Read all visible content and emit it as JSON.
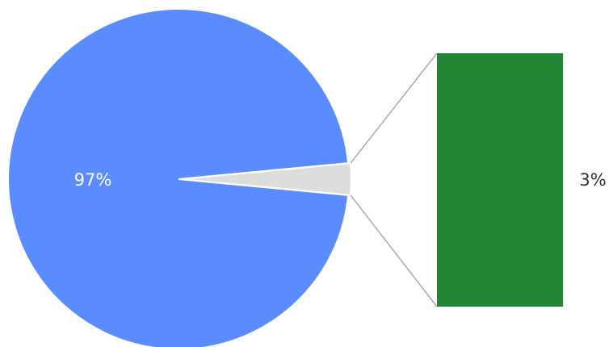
{
  "chart_data": {
    "type": "pie",
    "subtype": "pie-of-bar",
    "slices": [
      {
        "label": "97%",
        "value": 97,
        "color": "#5b8cff"
      },
      {
        "label": "3%",
        "value": 3,
        "color": "#dddddd",
        "exploded": true
      }
    ],
    "breakout": {
      "type": "bar",
      "segments": [
        {
          "label": "3%",
          "value": 3,
          "color": "#238636"
        }
      ],
      "connector_color": "#aaaaaa"
    }
  }
}
